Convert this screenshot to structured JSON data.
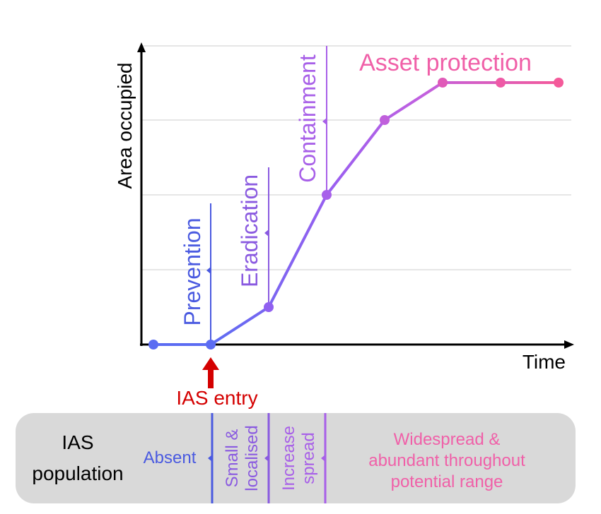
{
  "axes": {
    "y_label": "Area occupied",
    "x_label": "Time"
  },
  "stages": {
    "prevention": "Prevention",
    "eradication": "Eradication",
    "containment": "Containment",
    "asset_protection": "Asset protection"
  },
  "entry": "IAS entry",
  "population": {
    "title": [
      "IAS",
      "population"
    ],
    "absent": "Absent",
    "small": [
      "Small &",
      "localised"
    ],
    "increase": [
      "Increase",
      "spread"
    ],
    "widespread": [
      "Widespread &",
      "abundant throughout",
      "potential range"
    ]
  }
}
